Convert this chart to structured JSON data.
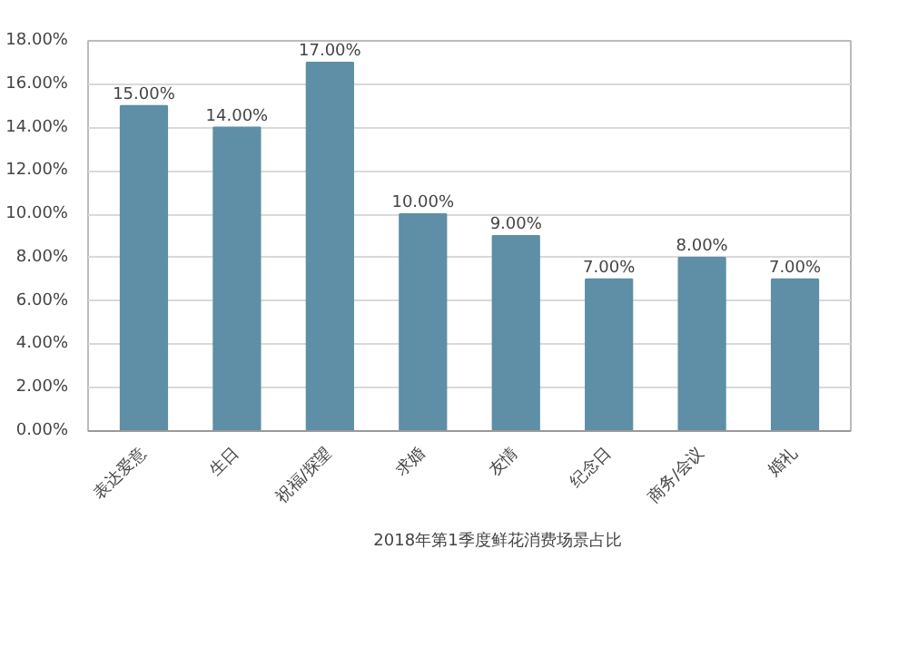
{
  "chart_data": {
    "type": "bar",
    "categories": [
      "表达爱意",
      "生日",
      "祝福/探望",
      "求婚",
      "友情",
      "纪念日",
      "商务/会议",
      "婚礼"
    ],
    "series": [
      {
        "name": "2018年第1季度鲜花消费场景占比",
        "color": "#5e8fa6",
        "values": [
          15,
          14,
          17,
          10,
          9,
          7,
          8,
          7
        ],
        "value_labels": [
          "15.00%",
          "14.00%",
          "17.00%",
          "10.00%",
          "9.00%",
          "7.00%",
          "8.00%",
          "7.00%"
        ]
      }
    ],
    "ylim": [
      0,
      18
    ],
    "yticks": [
      {
        "value": 0,
        "label": "0.00%"
      },
      {
        "value": 2,
        "label": "2.00%"
      },
      {
        "value": 4,
        "label": "4.00%"
      },
      {
        "value": 6,
        "label": "6.00%"
      },
      {
        "value": 8,
        "label": "8.00%"
      },
      {
        "value": 10,
        "label": "10.00%"
      },
      {
        "value": 12,
        "label": "12.00%"
      },
      {
        "value": 14,
        "label": "14.00%"
      },
      {
        "value": 16,
        "label": "16.00%"
      },
      {
        "value": 18,
        "label": "18.00%"
      }
    ],
    "grid": "y",
    "legend": "bottom"
  }
}
